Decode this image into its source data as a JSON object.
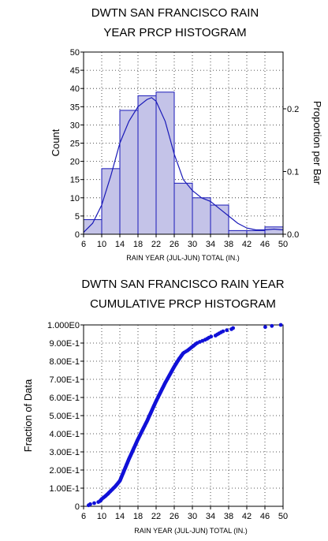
{
  "chart_data": [
    {
      "type": "bar",
      "title_lines": [
        "DWTN SAN FRANCISCO RAIN",
        "YEAR PRCP HISTOGRAM"
      ],
      "xlabel": "RAIN YEAR (JUL-JUN) TOTAL (IN.)",
      "ylabel": "Count",
      "y2label": "Proportion per Bar",
      "xlim": [
        6,
        50
      ],
      "ylim": [
        0,
        50
      ],
      "xticks": [
        "6",
        "10",
        "14",
        "18",
        "22",
        "26",
        "30",
        "34",
        "38",
        "42",
        "46",
        "50"
      ],
      "yticks": [
        "0",
        "5",
        "10",
        "15",
        "20",
        "25",
        "30",
        "35",
        "40",
        "45",
        "50"
      ],
      "y2ticks": [
        "0.0",
        "0.1",
        "0.2"
      ],
      "y2_per_count": 0.00581,
      "grid": true,
      "bin_edges": [
        6,
        10,
        14,
        18,
        22,
        26,
        30,
        34,
        38,
        42,
        46,
        50
      ],
      "counts": [
        4,
        18,
        34,
        38,
        39,
        14,
        10,
        8,
        1,
        1,
        2
      ],
      "bar_color": "#c4c3e8",
      "edge_color": "#1a1ab8",
      "density_curve": {
        "x": [
          6,
          8,
          10,
          12,
          14,
          16,
          18,
          20,
          21,
          22,
          24,
          26,
          28,
          30,
          32,
          34,
          36,
          38,
          40,
          42,
          44,
          46,
          48,
          50
        ],
        "y": [
          0.5,
          3,
          8,
          16,
          25,
          31,
          35,
          37,
          37.5,
          36.5,
          31,
          22,
          15,
          12,
          10,
          9,
          7,
          5,
          3,
          1.7,
          1.2,
          1.2,
          1.4,
          1.2
        ]
      }
    },
    {
      "type": "scatter",
      "title_lines": [
        "DWTN SAN FRANCISCO RAIN YEAR",
        "CUMULATIVE PRCP HISTOGRAM"
      ],
      "xlabel": "RAIN YEAR (JUL-JUN) TOTAL (IN.)",
      "ylabel": "Fraction of Data",
      "xlim": [
        6,
        50
      ],
      "ylim": [
        0,
        1
      ],
      "xticks": [
        "6",
        "10",
        "14",
        "18",
        "22",
        "26",
        "30",
        "34",
        "38",
        "42",
        "46",
        "50"
      ],
      "yticks": [
        "0",
        "1.00E-1",
        "2.00E-1",
        "3.00E-1",
        "4.00E-1",
        "5.00E-1",
        "6.00E-1",
        "7.00E-1",
        "8.00E-1",
        "9.00E-1",
        "1.000E0"
      ],
      "grid": true,
      "point_color": "#1010d8",
      "cdf_knots": {
        "x": [
          7,
          7.5,
          9.5,
          10,
          11,
          12,
          13,
          14,
          16,
          18,
          20,
          22,
          24,
          26,
          27,
          28,
          29,
          30,
          31,
          32,
          33,
          34,
          35,
          36,
          37,
          38.5,
          39,
          46,
          47,
          48,
          49.5
        ],
        "y": [
          0.004,
          0.012,
          0.025,
          0.04,
          0.06,
          0.085,
          0.11,
          0.14,
          0.26,
          0.37,
          0.47,
          0.58,
          0.68,
          0.77,
          0.81,
          0.845,
          0.86,
          0.88,
          0.9,
          0.91,
          0.92,
          0.935,
          0.94,
          0.955,
          0.968,
          0.975,
          0.983,
          0.988,
          0.992,
          0.996,
          1.0
        ]
      },
      "n_points": 171
    }
  ]
}
